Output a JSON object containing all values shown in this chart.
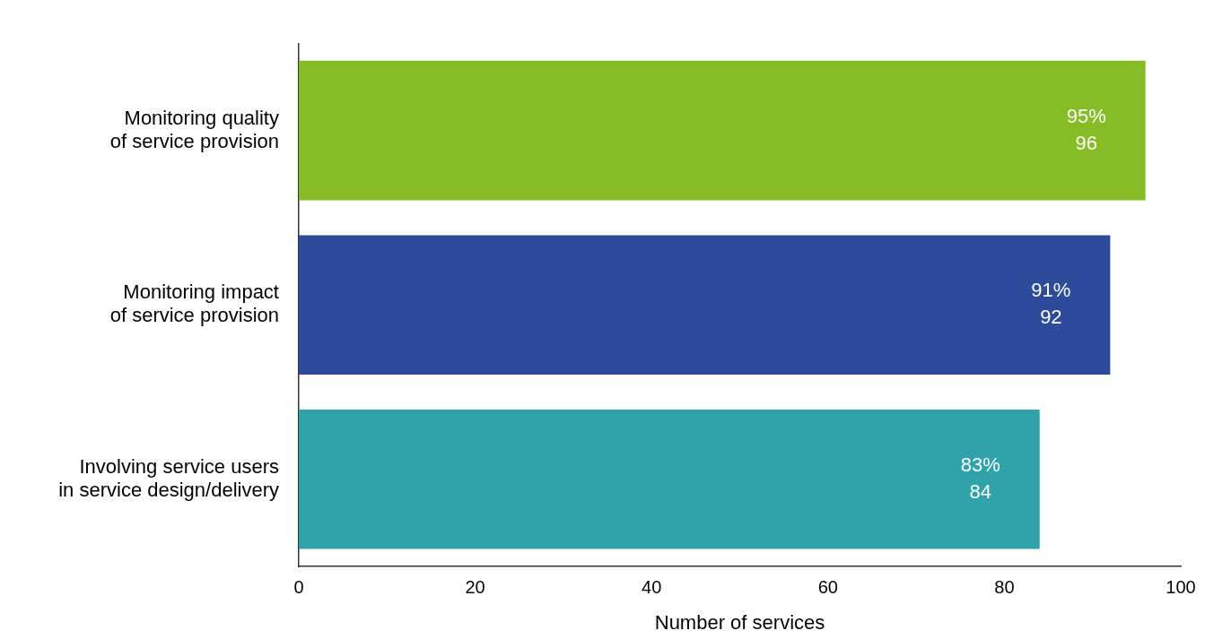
{
  "chart_data": {
    "type": "bar",
    "orientation": "horizontal",
    "categories": [
      "Monitoring quality\nof service provision",
      "Monitoring impact\nof service provision",
      "Involving service users\nin service design/delivery"
    ],
    "values": [
      96,
      92,
      84
    ],
    "colors": [
      "#86bc25",
      "#2e4a9a",
      "#2fa3a9"
    ],
    "value_labels": [
      "95%\n96",
      "91%\n92",
      "83%\n84"
    ],
    "xlabel": "Number of services",
    "xlim": [
      0,
      100
    ],
    "xticks": [
      0,
      20,
      40,
      60,
      80,
      100
    ],
    "grid": false,
    "legend": false
  }
}
